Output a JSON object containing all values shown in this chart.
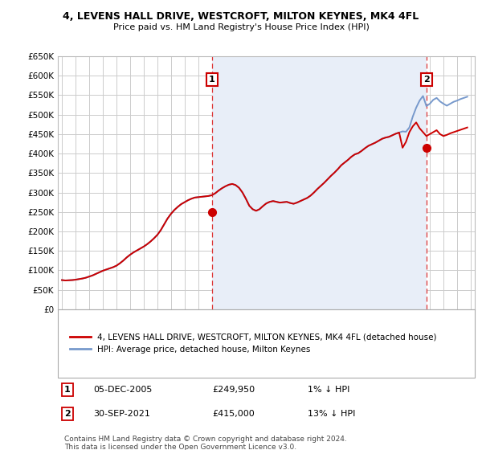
{
  "title": "4, LEVENS HALL DRIVE, WESTCROFT, MILTON KEYNES, MK4 4FL",
  "subtitle": "Price paid vs. HM Land Registry's House Price Index (HPI)",
  "hpi_color": "#7799cc",
  "price_color": "#cc0000",
  "background_color": "#ffffff",
  "grid_color": "#cccccc",
  "shaded_color": "#e8eef8",
  "ylim": [
    0,
    650000
  ],
  "xlim_start": 1994.7,
  "xlim_end": 2025.3,
  "ytick_labels": [
    "£0",
    "£50K",
    "£100K",
    "£150K",
    "£200K",
    "£250K",
    "£300K",
    "£350K",
    "£400K",
    "£450K",
    "£500K",
    "£550K",
    "£600K",
    "£650K"
  ],
  "ytick_values": [
    0,
    50000,
    100000,
    150000,
    200000,
    250000,
    300000,
    350000,
    400000,
    450000,
    500000,
    550000,
    600000,
    650000
  ],
  "sale1_x": 2006.0,
  "sale1_y": 249950,
  "sale2_x": 2021.75,
  "sale2_y": 415000,
  "sale1_label": "1",
  "sale2_label": "2",
  "sale1_date": "05-DEC-2005",
  "sale1_price": "£249,950",
  "sale1_hpi": "1% ↓ HPI",
  "sale2_date": "30-SEP-2021",
  "sale2_price": "£415,000",
  "sale2_hpi": "13% ↓ HPI",
  "legend_line1": "4, LEVENS HALL DRIVE, WESTCROFT, MILTON KEYNES, MK4 4FL (detached house)",
  "legend_line2": "HPI: Average price, detached house, Milton Keynes",
  "footer": "Contains HM Land Registry data © Crown copyright and database right 2024.\nThis data is licensed under the Open Government Licence v3.0.",
  "hpi_years": [
    1995.0,
    1995.25,
    1995.5,
    1995.75,
    1996.0,
    1996.25,
    1996.5,
    1996.75,
    1997.0,
    1997.25,
    1997.5,
    1997.75,
    1998.0,
    1998.25,
    1998.5,
    1998.75,
    1999.0,
    1999.25,
    1999.5,
    1999.75,
    2000.0,
    2000.25,
    2000.5,
    2000.75,
    2001.0,
    2001.25,
    2001.5,
    2001.75,
    2002.0,
    2002.25,
    2002.5,
    2002.75,
    2003.0,
    2003.25,
    2003.5,
    2003.75,
    2004.0,
    2004.25,
    2004.5,
    2004.75,
    2005.0,
    2005.25,
    2005.5,
    2005.75,
    2006.0,
    2006.25,
    2006.5,
    2006.75,
    2007.0,
    2007.25,
    2007.5,
    2007.75,
    2008.0,
    2008.25,
    2008.5,
    2008.75,
    2009.0,
    2009.25,
    2009.5,
    2009.75,
    2010.0,
    2010.25,
    2010.5,
    2010.75,
    2011.0,
    2011.25,
    2011.5,
    2011.75,
    2012.0,
    2012.25,
    2012.5,
    2012.75,
    2013.0,
    2013.25,
    2013.5,
    2013.75,
    2014.0,
    2014.25,
    2014.5,
    2014.75,
    2015.0,
    2015.25,
    2015.5,
    2015.75,
    2016.0,
    2016.25,
    2016.5,
    2016.75,
    2017.0,
    2017.25,
    2017.5,
    2017.75,
    2018.0,
    2018.25,
    2018.5,
    2018.75,
    2019.0,
    2019.25,
    2019.5,
    2019.75,
    2020.0,
    2020.25,
    2020.5,
    2020.75,
    2021.0,
    2021.25,
    2021.5,
    2021.75,
    2022.0,
    2022.25,
    2022.5,
    2022.75,
    2023.0,
    2023.25,
    2023.5,
    2023.75,
    2024.0,
    2024.25,
    2024.5,
    2024.75
  ],
  "hpi_vals": [
    75000,
    74000,
    74500,
    75000,
    76000,
    77500,
    79000,
    81000,
    84000,
    87000,
    91000,
    95000,
    99000,
    102000,
    105000,
    108000,
    112000,
    118000,
    125000,
    133000,
    140000,
    146000,
    151000,
    156000,
    161000,
    167000,
    174000,
    182000,
    191000,
    203000,
    218000,
    233000,
    245000,
    255000,
    263000,
    270000,
    275000,
    280000,
    284000,
    287000,
    288000,
    289000,
    290000,
    291000,
    293000,
    298000,
    305000,
    311000,
    316000,
    320000,
    322000,
    319000,
    312000,
    300000,
    284000,
    266000,
    257000,
    253000,
    257000,
    265000,
    272000,
    276000,
    278000,
    276000,
    274000,
    275000,
    276000,
    273000,
    271000,
    274000,
    278000,
    282000,
    286000,
    292000,
    300000,
    309000,
    317000,
    325000,
    334000,
    343000,
    351000,
    360000,
    370000,
    377000,
    384000,
    392000,
    398000,
    401000,
    407000,
    414000,
    420000,
    424000,
    428000,
    433000,
    438000,
    441000,
    443000,
    447000,
    451000,
    454000,
    457000,
    456000,
    467000,
    495000,
    518000,
    536000,
    548000,
    522000,
    528000,
    538000,
    543000,
    534000,
    528000,
    523000,
    528000,
    533000,
    536000,
    540000,
    543000,
    546000
  ],
  "red_vals": [
    75000,
    74000,
    74500,
    75000,
    76000,
    77500,
    79000,
    81000,
    84000,
    87000,
    91000,
    95000,
    99000,
    102000,
    105000,
    108000,
    112000,
    118000,
    125000,
    133000,
    140000,
    146000,
    151000,
    156000,
    161000,
    167000,
    174000,
    182000,
    191000,
    203000,
    218000,
    233000,
    245000,
    255000,
    263000,
    270000,
    275000,
    280000,
    284000,
    287000,
    288000,
    289000,
    290000,
    291000,
    293000,
    298000,
    305000,
    311000,
    316000,
    320000,
    322000,
    319000,
    312000,
    300000,
    284000,
    266000,
    257000,
    253000,
    257000,
    265000,
    272000,
    276000,
    278000,
    276000,
    274000,
    275000,
    276000,
    273000,
    271000,
    274000,
    278000,
    282000,
    286000,
    292000,
    300000,
    309000,
    317000,
    325000,
    334000,
    343000,
    351000,
    360000,
    370000,
    377000,
    384000,
    392000,
    398000,
    401000,
    407000,
    414000,
    420000,
    424000,
    428000,
    433000,
    438000,
    441000,
    443000,
    447000,
    451000,
    454000,
    415000,
    430000,
    455000,
    470000,
    480000,
    465000,
    455000,
    445000,
    450000,
    455000,
    460000,
    450000,
    445000,
    448000,
    452000,
    455000,
    458000,
    461000,
    464000,
    467000
  ]
}
